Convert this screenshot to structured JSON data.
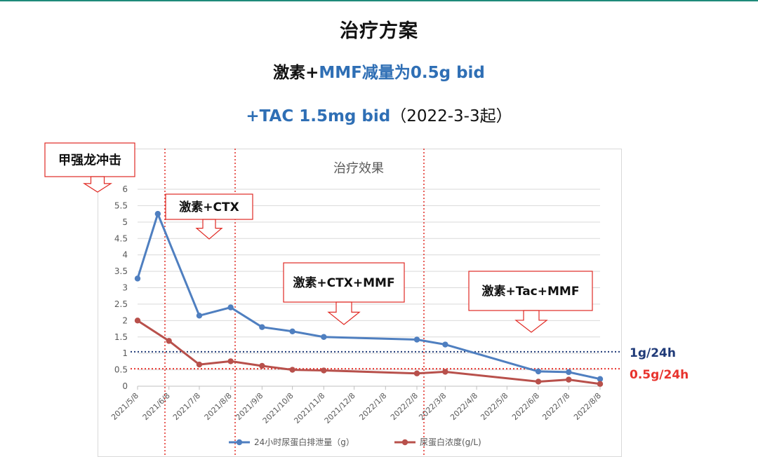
{
  "slide": {
    "title": "治疗方案",
    "line2_part1": "激素+",
    "line2_part2": "MMF减量为0.5g bid",
    "line3_part1": "+TAC 1.5mg bid",
    "line3_part2": "（2022-3-3起）"
  },
  "colors": {
    "series1": "#4f7fc0",
    "series2": "#b8504b",
    "threshold1": "#1f3a78",
    "threshold2": "#e8332d",
    "callout_border": "#e02a24",
    "accent_blue": "#2f6fb5",
    "divider": "#e02a24"
  },
  "callouts": {
    "pulse": "甲强龙冲击",
    "ctx": "激素+CTX",
    "ctx_mmf": "激素+CTX+MMF",
    "tac_mmf": "激素+Tac+MMF"
  },
  "thresholds": {
    "t1_label": "1g/24h",
    "t2_label": "0.5g/24h"
  },
  "chart_data": {
    "type": "line",
    "title": "治疗效果",
    "x": [
      "2021/5/8",
      "2021/6/8",
      "2021/7/8",
      "2021/8/8",
      "2021/9/8",
      "2021/10/8",
      "2021/11/8",
      "2021/12/8",
      "2022/1/8",
      "2022/2/8",
      "2022/3/8",
      "2022/4/8",
      "2022/5/8",
      "2022/6/8",
      "2022/7/8",
      "2022/8/8"
    ],
    "xlim": [
      "2021/5/8",
      "2022/8/8"
    ],
    "ylim": [
      0,
      6
    ],
    "yticks": [
      "0",
      "0.5",
      "1",
      "1.5",
      "2",
      "2.5",
      "3",
      "3.5",
      "4",
      "4.5",
      "5",
      "5.5",
      "6"
    ],
    "grid": true,
    "legend": "bottom",
    "thresholds": [
      1.05,
      0.53
    ],
    "series": [
      {
        "name": "24小时尿蛋白排泄量（g）",
        "points": [
          {
            "x": "2021/5/8",
            "y": 3.28
          },
          {
            "x": "2021/5/28",
            "y": 5.25
          },
          {
            "x": "2021/7/8",
            "y": 2.15
          },
          {
            "x": "2021/8/8",
            "y": 2.4
          },
          {
            "x": "2021/9/8",
            "y": 1.8
          },
          {
            "x": "2021/10/8",
            "y": 1.67
          },
          {
            "x": "2021/11/8",
            "y": 1.5
          },
          {
            "x": "2022/2/8",
            "y": 1.42
          },
          {
            "x": "2022/3/8",
            "y": 1.27
          },
          {
            "x": "2022/6/8",
            "y": 0.45
          },
          {
            "x": "2022/7/8",
            "y": 0.43
          },
          {
            "x": "2022/8/8",
            "y": 0.22
          }
        ]
      },
      {
        "name": "尿蛋白浓度(g/L)",
        "points": [
          {
            "x": "2021/5/8",
            "y": 2.0
          },
          {
            "x": "2021/6/8",
            "y": 1.38
          },
          {
            "x": "2021/7/8",
            "y": 0.66
          },
          {
            "x": "2021/8/8",
            "y": 0.76
          },
          {
            "x": "2021/9/8",
            "y": 0.62
          },
          {
            "x": "2021/10/8",
            "y": 0.5
          },
          {
            "x": "2021/11/8",
            "y": 0.48
          },
          {
            "x": "2022/2/8",
            "y": 0.39
          },
          {
            "x": "2022/3/8",
            "y": 0.44
          },
          {
            "x": "2022/6/8",
            "y": 0.14
          },
          {
            "x": "2022/7/8",
            "y": 0.2
          },
          {
            "x": "2022/8/8",
            "y": 0.07
          }
        ]
      }
    ]
  }
}
